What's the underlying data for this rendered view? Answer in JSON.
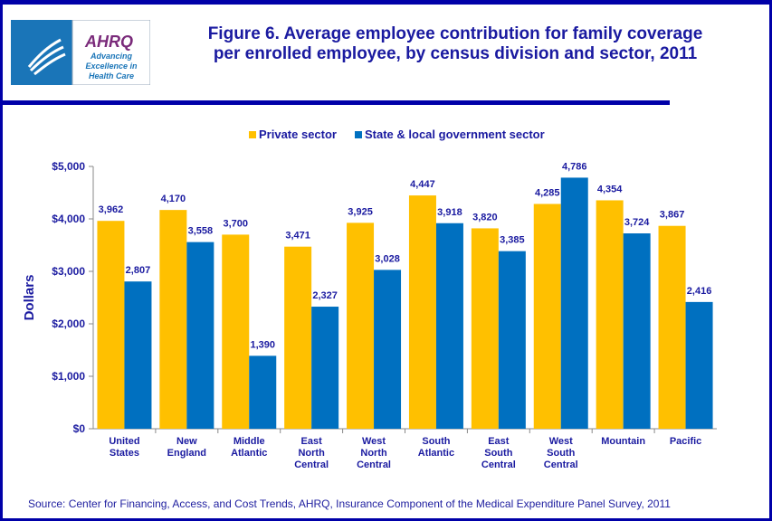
{
  "logo": {
    "hhs": "Department of Health & Human Services USA",
    "brand": "AHRQ",
    "tagline": [
      "Advancing",
      "Excellence in",
      "Health Care"
    ]
  },
  "title": [
    "Figure 6. Average employee contribution for family coverage",
    "per enrolled employee, by census division and sector, 2011"
  ],
  "source": "Source: Center for Financing, Access, and Cost Trends, AHRQ, Insurance Component of the Medical Expenditure Panel Survey,  2011",
  "chart_data": {
    "type": "bar",
    "title": "",
    "ylabel": "Dollars",
    "xlabel": "",
    "ylim": [
      0,
      5000
    ],
    "yticks": [
      "$0",
      "$1,000",
      "$2,000",
      "$3,000",
      "$4,000",
      "$5,000"
    ],
    "grid": false,
    "legend": "top",
    "categories": [
      [
        "United",
        "States"
      ],
      [
        "New",
        "England"
      ],
      [
        "Middle",
        "Atlantic"
      ],
      [
        "East",
        "North",
        "Central"
      ],
      [
        "West",
        "North",
        "Central"
      ],
      [
        "South",
        "Atlantic"
      ],
      [
        "East",
        "South",
        "Central"
      ],
      [
        "West",
        "South",
        "Central"
      ],
      [
        "Mountain"
      ],
      [
        "Pacific"
      ]
    ],
    "series": [
      {
        "name": "Private sector",
        "color": "#ffc000",
        "values": [
          3962,
          4170,
          3700,
          3471,
          3925,
          4447,
          3820,
          4285,
          4354,
          3867
        ],
        "labels": [
          "3,962",
          "4,170",
          "3,700",
          "3,471",
          "3,925",
          "4,447",
          "3,820",
          "4,285",
          "4,354",
          "3,867"
        ]
      },
      {
        "name": "State & local government sector",
        "color": "#0070c0",
        "values": [
          2807,
          3558,
          1390,
          2327,
          3028,
          3918,
          3385,
          4786,
          3724,
          2416
        ],
        "labels": [
          "2,807",
          "3,558",
          "1,390",
          "2,327",
          "3,028",
          "3,918",
          "3,385",
          "4,786",
          "3,724",
          "2,416"
        ]
      }
    ]
  }
}
